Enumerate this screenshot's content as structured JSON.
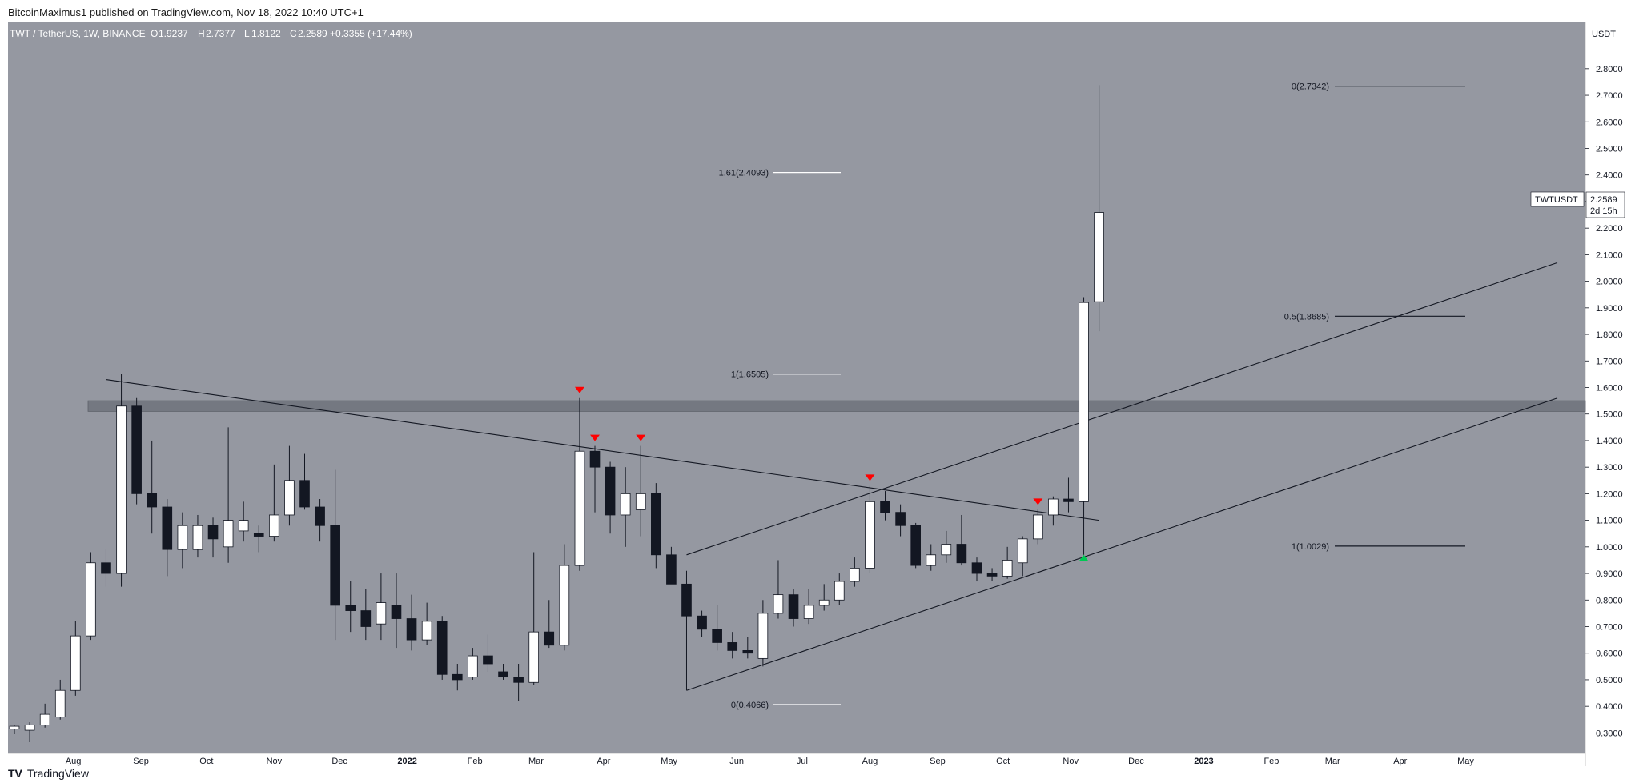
{
  "header": {
    "published": "BitcoinMaximus1 published on TradingView.com, Nov 18, 2022 10:40 UTC+1"
  },
  "legend": {
    "symbol": "TWT / TetherUS, 1W, BINANCE",
    "o_label": "O",
    "o_value": "1.9237",
    "h_label": "H",
    "h_value": "2.7377",
    "l_label": "L",
    "l_value": "1.8122",
    "c_label": "C",
    "c_value": "2.2589 +0.3355 (+17.44%)"
  },
  "price_axis": {
    "currency": "USDT"
  },
  "price_tag": {
    "symbol": "TWTUSDT",
    "price": "2.2589",
    "countdown": "2d 15h"
  },
  "footer": {
    "brand": "TradingView",
    "logo": "TV"
  },
  "colors": {
    "background": "#9598a1",
    "up_candle": "#ffffff",
    "down_candle": "#131722",
    "marker": "#ff0000",
    "support_marker": "#00c853",
    "line": "#131722",
    "axis_bg": "#ffffff"
  },
  "chart_data": {
    "type": "candlestick",
    "interval": "1W",
    "ylim": [
      0.25,
      2.95
    ],
    "y_ticks": [
      0.3,
      0.4,
      0.5,
      0.6,
      0.7,
      0.8,
      0.9,
      1.0,
      1.1,
      1.2,
      1.3,
      1.4,
      1.5,
      1.6,
      1.7,
      1.8,
      1.9,
      2.0,
      2.1,
      2.2,
      2.3,
      2.4,
      2.5,
      2.6,
      2.7,
      2.8
    ],
    "y_tick_labels": [
      "0.3000",
      "0.4000",
      "0.5000",
      "0.6000",
      "0.7000",
      "0.8000",
      "0.9000",
      "1.0000",
      "1.1000",
      "1.2000",
      "1.3000",
      "1.4000",
      "1.5000",
      "1.6000",
      "1.7000",
      "1.8000",
      "1.9000",
      "2.0000",
      "2.1000",
      "2.2000",
      "2.3000",
      "2.4000",
      "2.5000",
      "2.6000",
      "2.7000",
      "2.8000"
    ],
    "x_labels": [
      {
        "label": "Aug",
        "date": "2021-08-01"
      },
      {
        "label": "Sep",
        "date": "2021-09-01"
      },
      {
        "label": "Oct",
        "date": "2021-10-01"
      },
      {
        "label": "Nov",
        "date": "2021-11-01"
      },
      {
        "label": "Dec",
        "date": "2021-12-01"
      },
      {
        "label": "2022",
        "date": "2022-01-01"
      },
      {
        "label": "Feb",
        "date": "2022-02-01"
      },
      {
        "label": "Mar",
        "date": "2022-03-01"
      },
      {
        "label": "Apr",
        "date": "2022-04-01"
      },
      {
        "label": "May",
        "date": "2022-05-01"
      },
      {
        "label": "Jun",
        "date": "2022-06-01"
      },
      {
        "label": "Jul",
        "date": "2022-07-01"
      },
      {
        "label": "Aug",
        "date": "2022-08-01"
      },
      {
        "label": "Sep",
        "date": "2022-09-01"
      },
      {
        "label": "Oct",
        "date": "2022-10-01"
      },
      {
        "label": "Nov",
        "date": "2022-11-01"
      },
      {
        "label": "Dec",
        "date": "2022-12-01"
      },
      {
        "label": "2023",
        "date": "2023-01-01"
      },
      {
        "label": "Feb",
        "date": "2023-02-01"
      },
      {
        "label": "Mar",
        "date": "2023-03-01"
      },
      {
        "label": "Apr",
        "date": "2023-04-01"
      },
      {
        "label": "May",
        "date": "2023-05-01"
      }
    ],
    "x_range": [
      "2021-07-05",
      "2023-06-12"
    ],
    "candles": [
      {
        "date": "2021-07-05",
        "o": 0.315,
        "h": 0.33,
        "l": 0.295,
        "c": 0.325
      },
      {
        "date": "2021-07-12",
        "o": 0.31,
        "h": 0.34,
        "l": 0.265,
        "c": 0.33
      },
      {
        "date": "2021-07-19",
        "o": 0.33,
        "h": 0.41,
        "l": 0.32,
        "c": 0.37
      },
      {
        "date": "2021-07-26",
        "o": 0.36,
        "h": 0.5,
        "l": 0.35,
        "c": 0.46
      },
      {
        "date": "2021-08-02",
        "o": 0.46,
        "h": 0.72,
        "l": 0.44,
        "c": 0.665
      },
      {
        "date": "2021-08-09",
        "o": 0.665,
        "h": 0.98,
        "l": 0.65,
        "c": 0.94
      },
      {
        "date": "2021-08-16",
        "o": 0.94,
        "h": 0.99,
        "l": 0.85,
        "c": 0.9
      },
      {
        "date": "2021-08-23",
        "o": 0.9,
        "h": 1.65,
        "l": 0.85,
        "c": 1.53
      },
      {
        "date": "2021-08-30",
        "o": 1.53,
        "h": 1.56,
        "l": 1.16,
        "c": 1.2
      },
      {
        "date": "2021-09-06",
        "o": 1.2,
        "h": 1.4,
        "l": 1.05,
        "c": 1.15
      },
      {
        "date": "2021-09-13",
        "o": 1.15,
        "h": 1.18,
        "l": 0.89,
        "c": 0.99
      },
      {
        "date": "2021-09-20",
        "o": 0.99,
        "h": 1.13,
        "l": 0.92,
        "c": 1.08
      },
      {
        "date": "2021-09-27",
        "o": 0.99,
        "h": 1.12,
        "l": 0.96,
        "c": 1.08
      },
      {
        "date": "2021-10-04",
        "o": 1.08,
        "h": 1.11,
        "l": 0.96,
        "c": 1.03
      },
      {
        "date": "2021-10-11",
        "o": 1.0,
        "h": 1.45,
        "l": 0.94,
        "c": 1.1
      },
      {
        "date": "2021-10-18",
        "o": 1.06,
        "h": 1.17,
        "l": 1.02,
        "c": 1.1
      },
      {
        "date": "2021-10-25",
        "o": 1.05,
        "h": 1.08,
        "l": 0.98,
        "c": 1.04
      },
      {
        "date": "2021-11-01",
        "o": 1.04,
        "h": 1.31,
        "l": 1.02,
        "c": 1.12
      },
      {
        "date": "2021-11-08",
        "o": 1.12,
        "h": 1.38,
        "l": 1.08,
        "c": 1.25
      },
      {
        "date": "2021-11-15",
        "o": 1.25,
        "h": 1.35,
        "l": 1.14,
        "c": 1.15
      },
      {
        "date": "2021-11-22",
        "o": 1.15,
        "h": 1.18,
        "l": 1.02,
        "c": 1.08
      },
      {
        "date": "2021-11-29",
        "o": 1.08,
        "h": 1.29,
        "l": 0.65,
        "c": 0.78
      },
      {
        "date": "2021-12-06",
        "o": 0.78,
        "h": 0.87,
        "l": 0.68,
        "c": 0.76
      },
      {
        "date": "2021-12-13",
        "o": 0.76,
        "h": 0.84,
        "l": 0.65,
        "c": 0.7
      },
      {
        "date": "2021-12-20",
        "o": 0.71,
        "h": 0.9,
        "l": 0.65,
        "c": 0.79
      },
      {
        "date": "2021-12-27",
        "o": 0.78,
        "h": 0.9,
        "l": 0.62,
        "c": 0.73
      },
      {
        "date": "2022-01-03",
        "o": 0.73,
        "h": 0.82,
        "l": 0.61,
        "c": 0.65
      },
      {
        "date": "2022-01-10",
        "o": 0.65,
        "h": 0.79,
        "l": 0.63,
        "c": 0.72
      },
      {
        "date": "2022-01-17",
        "o": 0.72,
        "h": 0.74,
        "l": 0.5,
        "c": 0.52
      },
      {
        "date": "2022-01-24",
        "o": 0.52,
        "h": 0.56,
        "l": 0.46,
        "c": 0.5
      },
      {
        "date": "2022-01-31",
        "o": 0.51,
        "h": 0.62,
        "l": 0.5,
        "c": 0.59
      },
      {
        "date": "2022-02-07",
        "o": 0.59,
        "h": 0.67,
        "l": 0.53,
        "c": 0.56
      },
      {
        "date": "2022-02-14",
        "o": 0.53,
        "h": 0.56,
        "l": 0.5,
        "c": 0.51
      },
      {
        "date": "2022-02-21",
        "o": 0.51,
        "h": 0.56,
        "l": 0.42,
        "c": 0.49
      },
      {
        "date": "2022-02-28",
        "o": 0.49,
        "h": 0.98,
        "l": 0.48,
        "c": 0.68
      },
      {
        "date": "2022-03-07",
        "o": 0.68,
        "h": 0.8,
        "l": 0.62,
        "c": 0.63
      },
      {
        "date": "2022-03-14",
        "o": 0.63,
        "h": 1.01,
        "l": 0.61,
        "c": 0.93
      },
      {
        "date": "2022-03-21",
        "o": 0.93,
        "h": 1.56,
        "l": 0.91,
        "c": 1.36
      },
      {
        "date": "2022-03-28",
        "o": 1.36,
        "h": 1.38,
        "l": 1.13,
        "c": 1.3
      },
      {
        "date": "2022-04-04",
        "o": 1.3,
        "h": 1.32,
        "l": 1.05,
        "c": 1.12
      },
      {
        "date": "2022-04-11",
        "o": 1.12,
        "h": 1.3,
        "l": 1.0,
        "c": 1.2
      },
      {
        "date": "2022-04-18",
        "o": 1.14,
        "h": 1.38,
        "l": 1.04,
        "c": 1.2
      },
      {
        "date": "2022-04-25",
        "o": 1.2,
        "h": 1.24,
        "l": 0.92,
        "c": 0.97
      },
      {
        "date": "2022-05-02",
        "o": 0.97,
        "h": 1.0,
        "l": 0.87,
        "c": 0.86
      },
      {
        "date": "2022-05-09",
        "o": 0.86,
        "h": 0.91,
        "l": 0.46,
        "c": 0.74
      },
      {
        "date": "2022-05-16",
        "o": 0.74,
        "h": 0.76,
        "l": 0.66,
        "c": 0.69
      },
      {
        "date": "2022-05-23",
        "o": 0.69,
        "h": 0.78,
        "l": 0.61,
        "c": 0.64
      },
      {
        "date": "2022-05-30",
        "o": 0.64,
        "h": 0.68,
        "l": 0.58,
        "c": 0.61
      },
      {
        "date": "2022-06-06",
        "o": 0.61,
        "h": 0.66,
        "l": 0.58,
        "c": 0.6
      },
      {
        "date": "2022-06-13",
        "o": 0.58,
        "h": 0.8,
        "l": 0.55,
        "c": 0.75
      },
      {
        "date": "2022-06-20",
        "o": 0.75,
        "h": 0.95,
        "l": 0.73,
        "c": 0.82
      },
      {
        "date": "2022-06-27",
        "o": 0.82,
        "h": 0.84,
        "l": 0.7,
        "c": 0.73
      },
      {
        "date": "2022-07-04",
        "o": 0.73,
        "h": 0.84,
        "l": 0.71,
        "c": 0.78
      },
      {
        "date": "2022-07-11",
        "o": 0.78,
        "h": 0.86,
        "l": 0.76,
        "c": 0.8
      },
      {
        "date": "2022-07-18",
        "o": 0.8,
        "h": 0.9,
        "l": 0.78,
        "c": 0.87
      },
      {
        "date": "2022-07-25",
        "o": 0.87,
        "h": 0.96,
        "l": 0.85,
        "c": 0.92
      },
      {
        "date": "2022-08-01",
        "o": 0.92,
        "h": 1.23,
        "l": 0.9,
        "c": 1.17
      },
      {
        "date": "2022-08-08",
        "o": 1.17,
        "h": 1.21,
        "l": 1.1,
        "c": 1.13
      },
      {
        "date": "2022-08-15",
        "o": 1.13,
        "h": 1.16,
        "l": 1.04,
        "c": 1.08
      },
      {
        "date": "2022-08-22",
        "o": 1.08,
        "h": 1.09,
        "l": 0.92,
        "c": 0.93
      },
      {
        "date": "2022-08-29",
        "o": 0.93,
        "h": 1.01,
        "l": 0.91,
        "c": 0.97
      },
      {
        "date": "2022-09-05",
        "o": 0.97,
        "h": 1.06,
        "l": 0.94,
        "c": 1.01
      },
      {
        "date": "2022-09-12",
        "o": 1.01,
        "h": 1.12,
        "l": 0.93,
        "c": 0.94
      },
      {
        "date": "2022-09-19",
        "o": 0.94,
        "h": 0.96,
        "l": 0.87,
        "c": 0.9
      },
      {
        "date": "2022-09-26",
        "o": 0.9,
        "h": 0.92,
        "l": 0.87,
        "c": 0.89
      },
      {
        "date": "2022-10-03",
        "o": 0.89,
        "h": 1.0,
        "l": 0.88,
        "c": 0.95
      },
      {
        "date": "2022-10-10",
        "o": 0.94,
        "h": 1.04,
        "l": 0.89,
        "c": 1.03
      },
      {
        "date": "2022-10-17",
        "o": 1.03,
        "h": 1.14,
        "l": 1.01,
        "c": 1.12
      },
      {
        "date": "2022-10-24",
        "o": 1.12,
        "h": 1.19,
        "l": 1.08,
        "c": 1.18
      },
      {
        "date": "2022-10-31",
        "o": 1.18,
        "h": 1.26,
        "l": 1.13,
        "c": 1.17
      },
      {
        "date": "2022-11-07",
        "o": 1.17,
        "h": 1.94,
        "l": 0.97,
        "c": 1.92
      },
      {
        "date": "2022-11-14",
        "o": 1.923,
        "h": 2.738,
        "l": 1.812,
        "c": 2.259
      }
    ],
    "fib_levels": [
      {
        "label": "0(2.7342)",
        "value": 2.7342,
        "set": "right"
      },
      {
        "label": "0.5(1.8685)",
        "value": 1.8685,
        "set": "right"
      },
      {
        "label": "1(1.0029)",
        "value": 1.0029,
        "set": "right"
      },
      {
        "label": "1.61(2.4093)",
        "value": 2.4093,
        "set": "mid"
      },
      {
        "label": "1(1.6505)",
        "value": 1.6505,
        "set": "mid"
      },
      {
        "label": "0(0.4066)",
        "value": 0.4066,
        "set": "mid"
      }
    ],
    "resistance_zone": [
      1.51,
      1.55
    ],
    "trendlines": [
      {
        "name": "descending",
        "from": {
          "date": "2021-08-16",
          "price": 1.63
        },
        "to": {
          "date": "2022-11-14",
          "price": 1.1
        }
      },
      {
        "name": "ascending-support",
        "from": {
          "date": "2022-05-09",
          "price": 0.46
        },
        "to": {
          "date": "2023-06-12",
          "price": 1.56
        }
      },
      {
        "name": "ascending-channel",
        "from": {
          "date": "2022-05-09",
          "price": 0.97
        },
        "to": {
          "date": "2023-06-12",
          "price": 2.07
        }
      }
    ],
    "markers": [
      {
        "date": "2022-03-21",
        "price": 1.56,
        "kind": "high"
      },
      {
        "date": "2022-03-28",
        "price": 1.38,
        "kind": "high"
      },
      {
        "date": "2022-04-18",
        "price": 1.38,
        "kind": "high"
      },
      {
        "date": "2022-08-01",
        "price": 1.23,
        "kind": "high"
      },
      {
        "date": "2022-10-17",
        "price": 1.14,
        "kind": "high"
      },
      {
        "date": "2022-11-07",
        "price": 0.97,
        "kind": "low"
      }
    ]
  }
}
